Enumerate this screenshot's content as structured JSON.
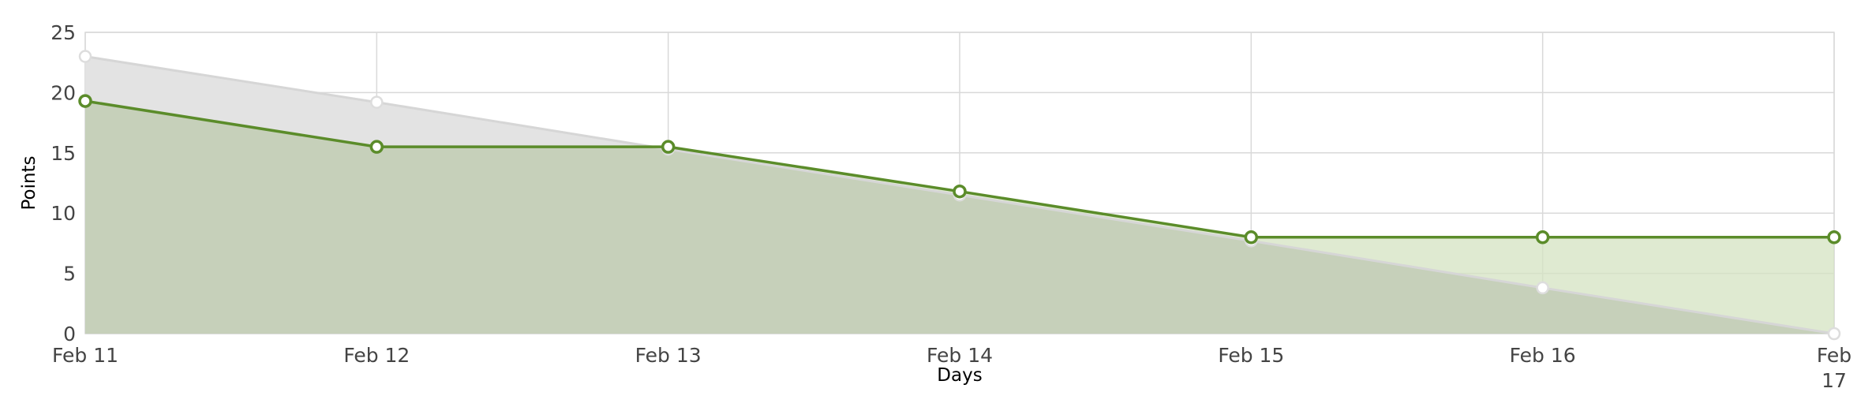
{
  "chart_data": {
    "type": "area",
    "title": "",
    "xlabel": "Days",
    "ylabel": "Points",
    "categories": [
      "Feb 11",
      "Feb 12",
      "Feb 13",
      "Feb 14",
      "Feb 15",
      "Feb 16",
      "Feb 17"
    ],
    "ylim": [
      0,
      25
    ],
    "yticks": [
      0,
      5,
      10,
      15,
      20,
      25
    ],
    "grid": true,
    "legend": "none",
    "series": [
      {
        "values": [
          23,
          19.2,
          15.3,
          11.5,
          7.7,
          3.8,
          0
        ],
        "line_color": "#d6d6d6",
        "fill_color": "#e3e3e3",
        "marker_stroke": "#dddddd",
        "marker_fill": "#ffffff"
      },
      {
        "values": [
          19.3,
          15.5,
          15.5,
          11.8,
          8,
          8,
          8
        ],
        "line_color": "#5b8c2a",
        "fill_color": "#d4e3c2",
        "marker_stroke": "#5b8c2a",
        "marker_fill": "#ffffff"
      }
    ]
  },
  "colors": {
    "grid": "#d9d9d9",
    "background": "#ffffff"
  }
}
